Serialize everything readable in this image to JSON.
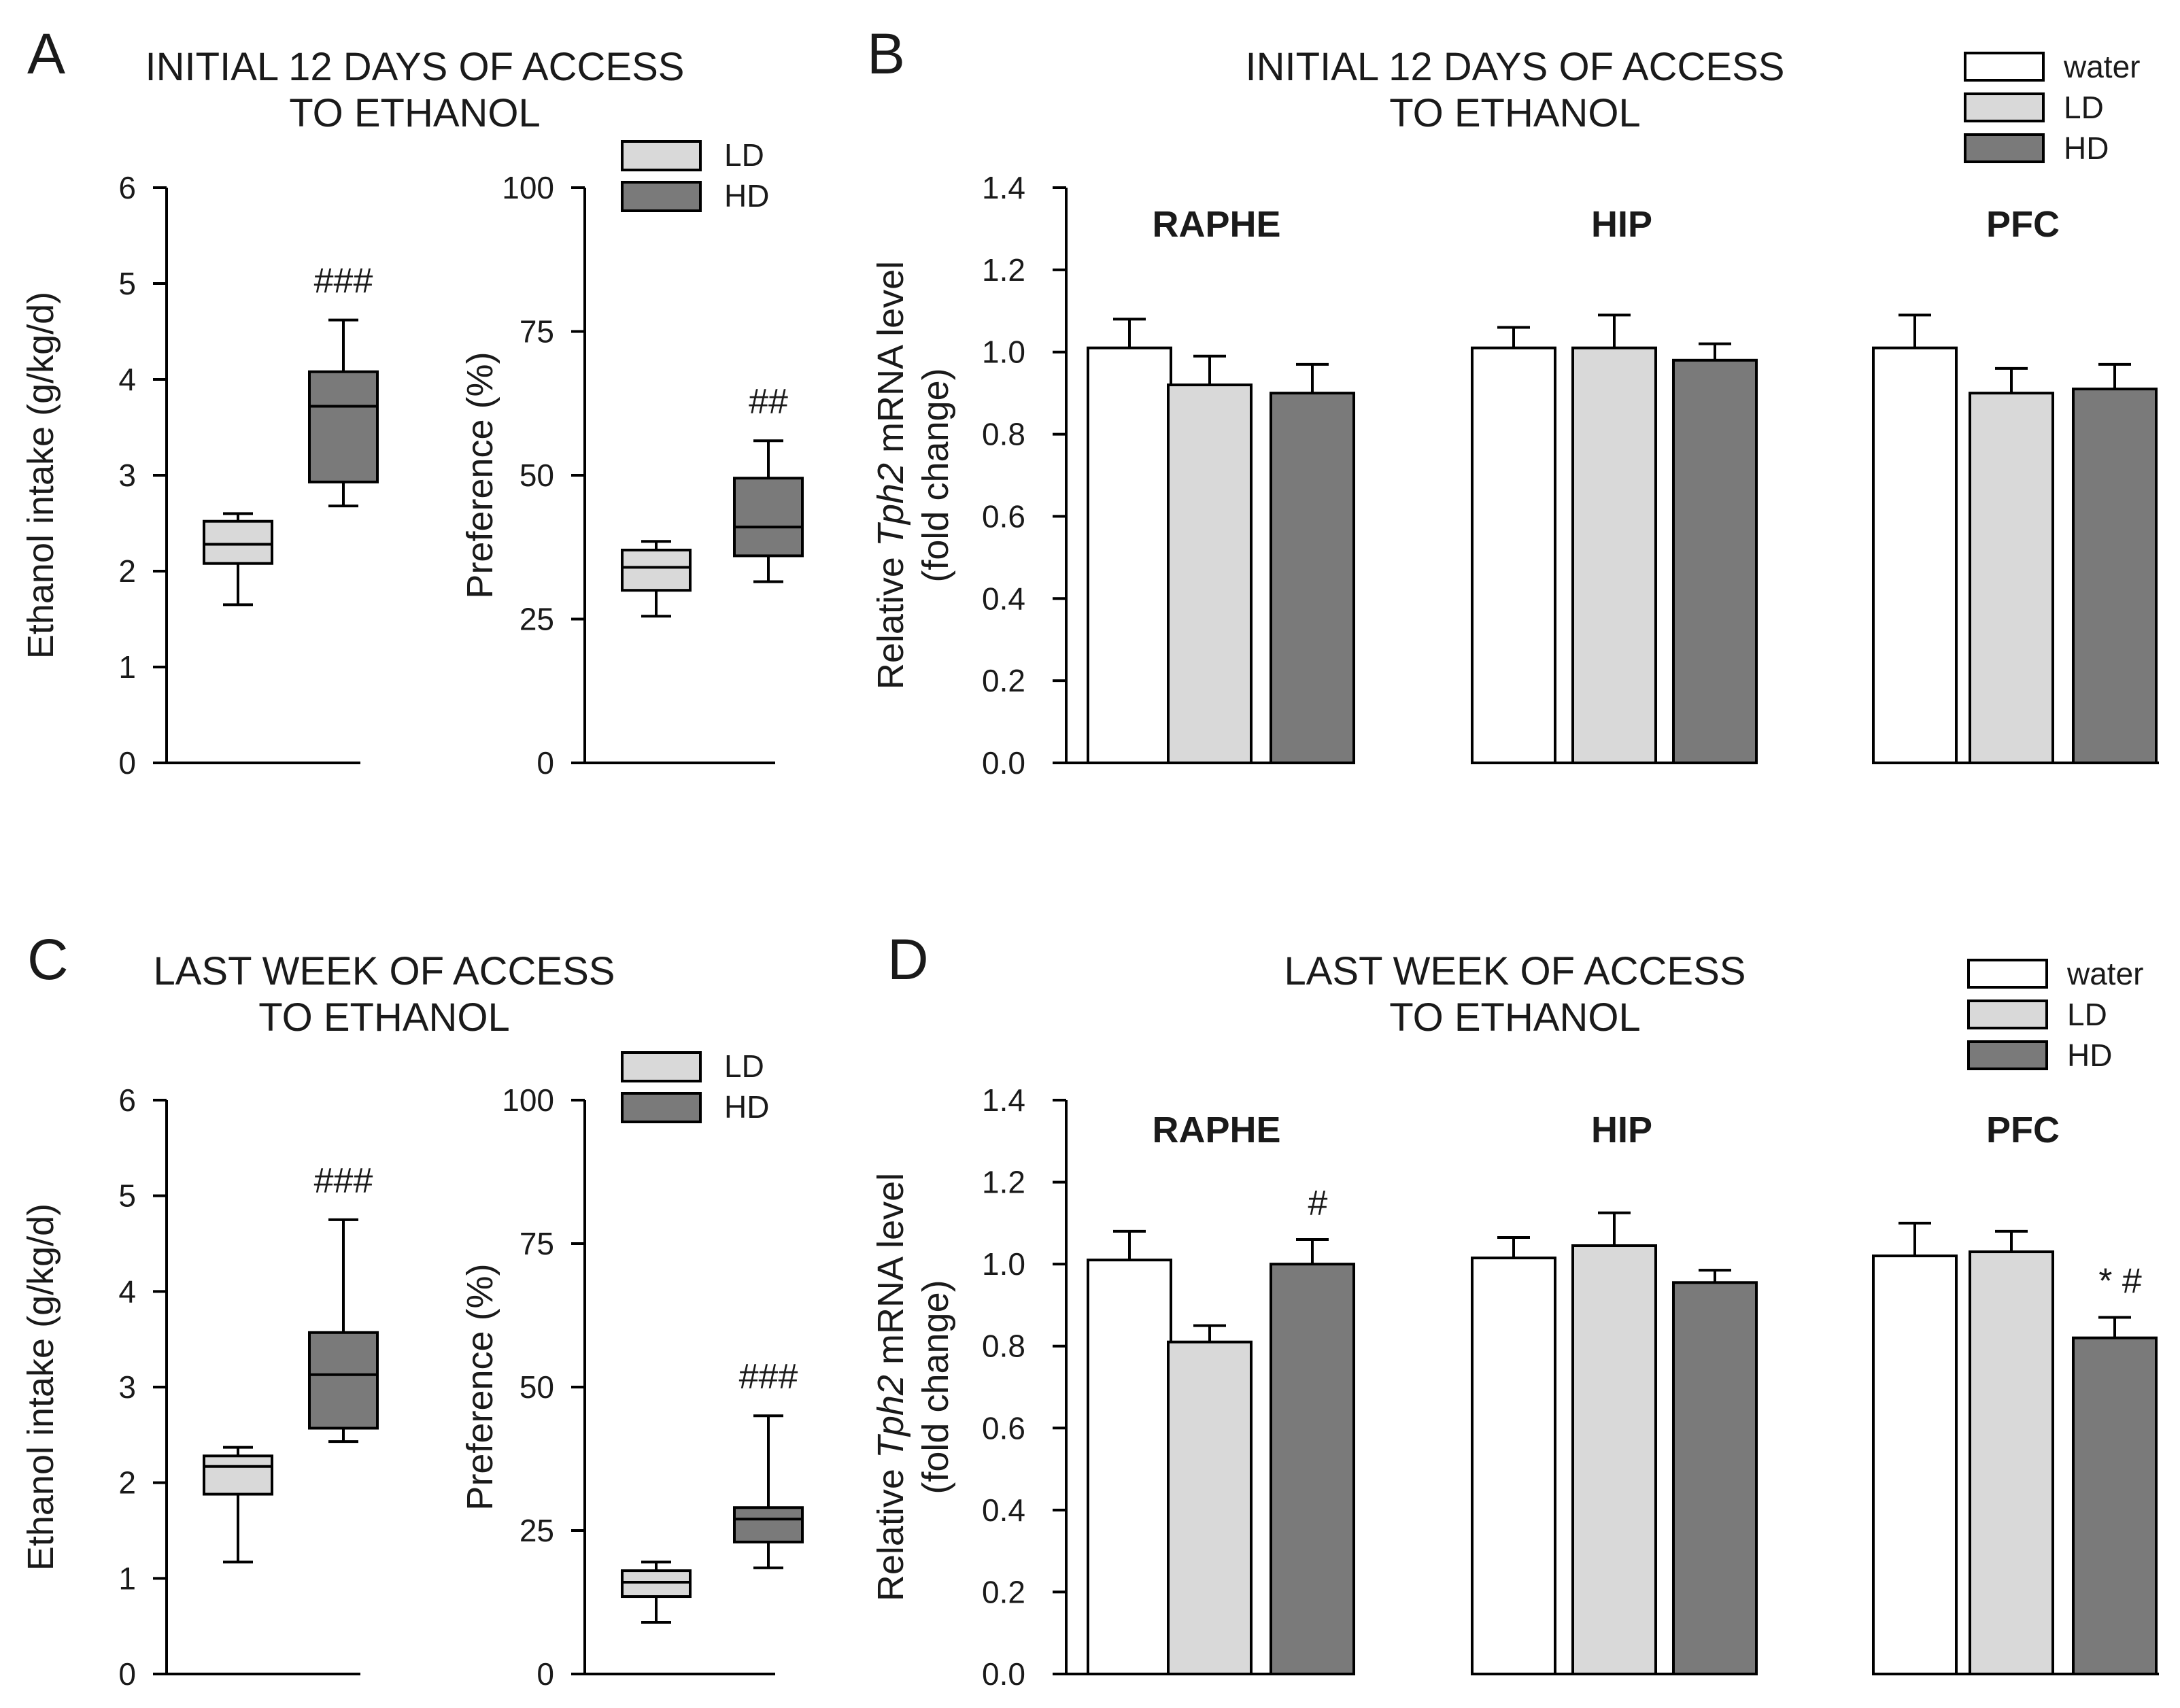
{
  "colors": {
    "water": "#ffffff",
    "LD": "#d9d9d9",
    "HD": "#7a7a7a",
    "stroke": "#000000"
  },
  "chart_data": [
    {
      "panel": "A",
      "type": "box",
      "title": [
        "INITIAL 12 DAYS OF ACCESS",
        "TO ETHANOL"
      ],
      "plots": [
        {
          "ylabel": "Ethanol intake (g/kg/d)",
          "ylim": [
            0,
            6
          ],
          "yticks": [
            "0",
            "1",
            "2",
            "3",
            "4",
            "5",
            "6"
          ],
          "boxes": [
            {
              "group": "LD",
              "whislo": 1.65,
              "q1": 2.08,
              "med": 2.28,
              "q3": 2.52,
              "whishi": 2.6,
              "sig": ""
            },
            {
              "group": "HD",
              "whislo": 2.68,
              "q1": 2.93,
              "med": 3.72,
              "q3": 4.08,
              "whishi": 4.62,
              "sig": "###"
            }
          ]
        },
        {
          "ylabel": "Preference (%)",
          "ylim": [
            0,
            100
          ],
          "yticks": [
            "0",
            "25",
            "50",
            "75",
            "100"
          ],
          "legend": [
            "LD",
            "HD"
          ],
          "boxes": [
            {
              "group": "LD",
              "whislo": 25.5,
              "q1": 30,
              "med": 34,
              "q3": 37,
              "whishi": 38.5,
              "sig": ""
            },
            {
              "group": "HD",
              "whislo": 31.5,
              "q1": 36,
              "med": 41,
              "q3": 49.5,
              "whishi": 56,
              "sig": "##"
            }
          ]
        }
      ]
    },
    {
      "panel": "B",
      "type": "bar",
      "title": [
        "INITIAL 12 DAYS OF ACCESS",
        "TO ETHANOL"
      ],
      "ylabel": {
        "pre": "Relative ",
        "italic": "Tph2",
        "post": " mRNA level",
        "line2": "(fold change)"
      },
      "ylim": [
        0,
        1.4
      ],
      "yticks": [
        "0.0",
        "0.2",
        "0.4",
        "0.6",
        "0.8",
        "1.0",
        "1.2",
        "1.4"
      ],
      "legend": [
        "water",
        "LD",
        "HD"
      ],
      "groups": [
        {
          "name": "RAPHE",
          "bars": [
            {
              "series": "water",
              "value": 1.01,
              "err": 0.07,
              "sig": ""
            },
            {
              "series": "LD",
              "value": 0.92,
              "err": 0.07,
              "sig": ""
            },
            {
              "series": "HD",
              "value": 0.9,
              "err": 0.07,
              "sig": ""
            }
          ]
        },
        {
          "name": "HIP",
          "bars": [
            {
              "series": "water",
              "value": 1.01,
              "err": 0.05,
              "sig": ""
            },
            {
              "series": "LD",
              "value": 1.01,
              "err": 0.08,
              "sig": ""
            },
            {
              "series": "HD",
              "value": 0.98,
              "err": 0.04,
              "sig": ""
            }
          ]
        },
        {
          "name": "PFC",
          "bars": [
            {
              "series": "water",
              "value": 1.01,
              "err": 0.08,
              "sig": ""
            },
            {
              "series": "LD",
              "value": 0.9,
              "err": 0.06,
              "sig": ""
            },
            {
              "series": "HD",
              "value": 0.91,
              "err": 0.06,
              "sig": ""
            }
          ]
        }
      ]
    },
    {
      "panel": "C",
      "type": "box",
      "title": [
        "LAST WEEK OF ACCESS",
        "TO ETHANOL"
      ],
      "plots": [
        {
          "ylabel": "Ethanol intake (g/kg/d)",
          "ylim": [
            0,
            6
          ],
          "yticks": [
            "0",
            "1",
            "2",
            "3",
            "4",
            "5",
            "6"
          ],
          "boxes": [
            {
              "group": "LD",
              "whislo": 1.17,
              "q1": 1.88,
              "med": 2.17,
              "q3": 2.28,
              "whishi": 2.37,
              "sig": ""
            },
            {
              "group": "HD",
              "whislo": 2.43,
              "q1": 2.57,
              "med": 3.13,
              "q3": 3.57,
              "whishi": 4.75,
              "sig": "###"
            }
          ]
        },
        {
          "ylabel": "Preference (%)",
          "ylim": [
            0,
            100
          ],
          "yticks": [
            "0",
            "25",
            "50",
            "75",
            "100"
          ],
          "legend": [
            "LD",
            "HD"
          ],
          "boxes": [
            {
              "group": "LD",
              "whislo": 9,
              "q1": 13.5,
              "med": 16,
              "q3": 18,
              "whishi": 19.5,
              "sig": ""
            },
            {
              "group": "HD",
              "whislo": 18.5,
              "q1": 23,
              "med": 27,
              "q3": 29,
              "whishi": 45,
              "sig": "###"
            }
          ]
        }
      ]
    },
    {
      "panel": "D",
      "type": "bar",
      "title": [
        "LAST WEEK OF ACCESS",
        "TO ETHANOL"
      ],
      "ylabel": {
        "pre": "Relative ",
        "italic": "Tph2",
        "post": " mRNA level",
        "line2": "(fold change)"
      },
      "ylim": [
        0,
        1.4
      ],
      "yticks": [
        "0.0",
        "0.2",
        "0.4",
        "0.6",
        "0.8",
        "1.0",
        "1.2",
        "1.4"
      ],
      "legend": [
        "water",
        "LD",
        "HD"
      ],
      "groups": [
        {
          "name": "RAPHE",
          "bars": [
            {
              "series": "water",
              "value": 1.01,
              "err": 0.07,
              "sig": ""
            },
            {
              "series": "LD",
              "value": 0.81,
              "err": 0.04,
              "sig": ""
            },
            {
              "series": "HD",
              "value": 1.0,
              "err": 0.06,
              "sig": "#"
            }
          ]
        },
        {
          "name": "HIP",
          "bars": [
            {
              "series": "water",
              "value": 1.015,
              "err": 0.05,
              "sig": ""
            },
            {
              "series": "LD",
              "value": 1.045,
              "err": 0.08,
              "sig": ""
            },
            {
              "series": "HD",
              "value": 0.955,
              "err": 0.03,
              "sig": ""
            }
          ]
        },
        {
          "name": "PFC",
          "bars": [
            {
              "series": "water",
              "value": 1.02,
              "err": 0.08,
              "sig": ""
            },
            {
              "series": "LD",
              "value": 1.03,
              "err": 0.05,
              "sig": ""
            },
            {
              "series": "HD",
              "value": 0.82,
              "err": 0.05,
              "sig": "* #"
            }
          ]
        }
      ]
    }
  ]
}
